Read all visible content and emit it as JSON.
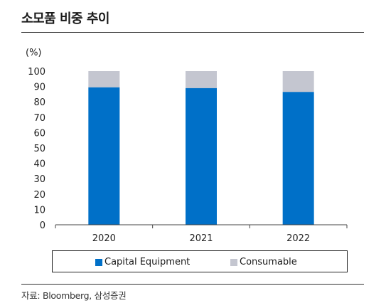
{
  "header": {
    "title": "소모품 비중 추이"
  },
  "footer": {
    "source": "자료: Bloomberg, 삼성증권"
  },
  "chart_data": {
    "type": "bar",
    "stacked": true,
    "title": "소모품 비중 추이",
    "ylabel": "(%)",
    "xlabel": "",
    "categories": [
      "2020",
      "2021",
      "2022"
    ],
    "ylim": [
      0,
      100
    ],
    "yticks": [
      0,
      10,
      20,
      30,
      40,
      50,
      60,
      70,
      80,
      90,
      100
    ],
    "grid": false,
    "legend_position": "bottom",
    "series": [
      {
        "name": "Capital Equipment",
        "values": [
          89.5,
          89,
          86.5
        ],
        "color": "#0070C8"
      },
      {
        "name": "Consumable",
        "values": [
          10.5,
          11,
          13.5
        ],
        "color": "#C4C6D0"
      }
    ]
  }
}
